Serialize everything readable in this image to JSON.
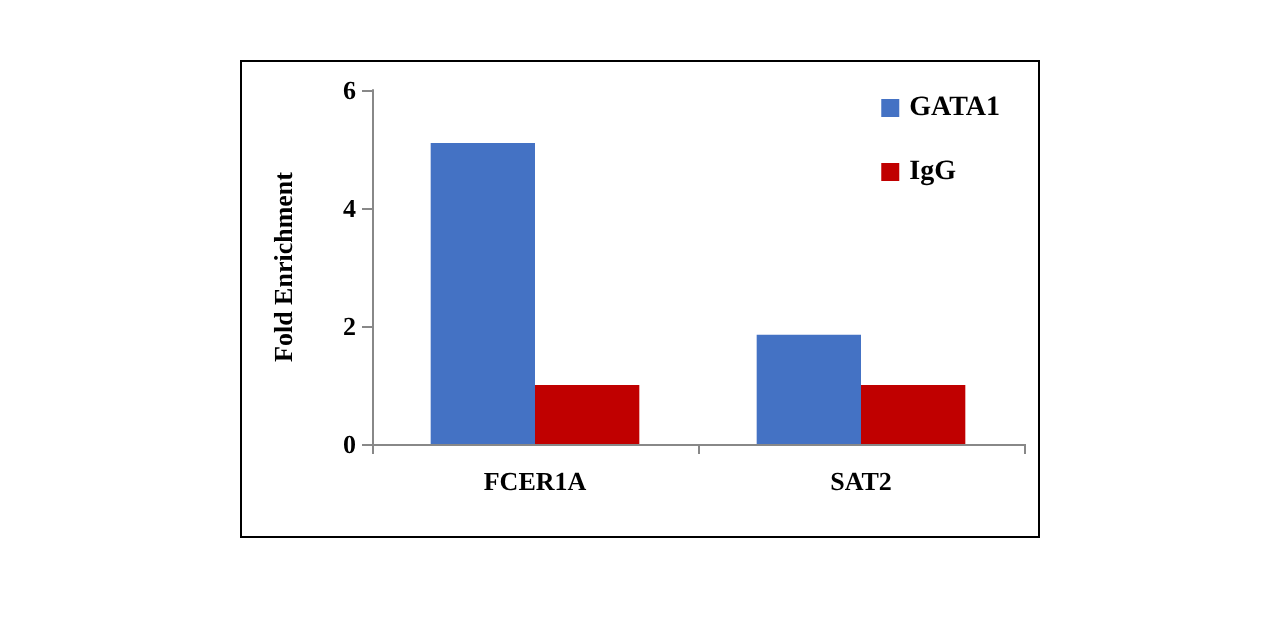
{
  "chart_data": {
    "type": "bar",
    "ylabel": "Fold Enrichment",
    "categories": [
      "FCER1A",
      "SAT2"
    ],
    "series": [
      {
        "name": "GATA1",
        "color": "#4472c4",
        "values": [
          5.1,
          1.85
        ]
      },
      {
        "name": "IgG",
        "color": "#c00000",
        "values": [
          1.0,
          1.0
        ]
      }
    ],
    "ylim": [
      0,
      6
    ],
    "yticks": [
      0,
      2,
      4,
      6
    ],
    "grid": false,
    "legend": "top right"
  }
}
